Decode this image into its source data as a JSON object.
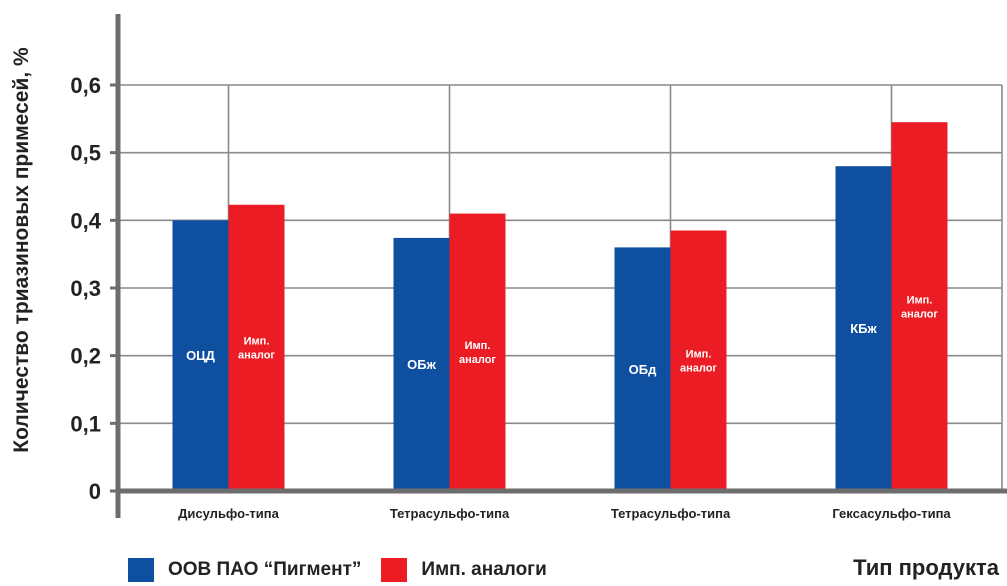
{
  "chart_data": {
    "type": "bar",
    "categories": [
      "Дисульфо-типа",
      "Тетрасульфо-типа",
      "Тетрасульфо-типа",
      "Гексасульфо-типа"
    ],
    "series": [
      {
        "name": "ООВ ПАО “Пигмент”",
        "color": "#0e4f9f",
        "values": [
          0.4,
          0.374,
          0.36,
          0.48
        ],
        "bar_labels": [
          [
            "ОЦД"
          ],
          [
            "ОБж"
          ],
          [
            "ОБд"
          ],
          [
            "КБж"
          ]
        ]
      },
      {
        "name": "Имп. аналоги",
        "color": "#ec1c24",
        "values": [
          0.423,
          0.41,
          0.385,
          0.545
        ],
        "bar_labels": [
          [
            "Имп.",
            "аналог"
          ],
          [
            "Имп.",
            "аналог"
          ],
          [
            "Имп.",
            "аналог"
          ],
          [
            "Имп.",
            "аналог"
          ]
        ]
      }
    ],
    "yticks": [
      "0",
      "0,1",
      "0,2",
      "0,3",
      "0,4",
      "0,5",
      "0,6"
    ],
    "ylim": [
      0,
      0.6
    ],
    "ylabel": "Количество триазиновых примесей, %",
    "xlabel": "Тип продукта",
    "grid": true,
    "legend": "bottom-left"
  },
  "colors": {
    "blue": "#0e4f9f",
    "red": "#ec1c24",
    "axis": "#6d6d6d",
    "grid": "#8a8a8a"
  }
}
